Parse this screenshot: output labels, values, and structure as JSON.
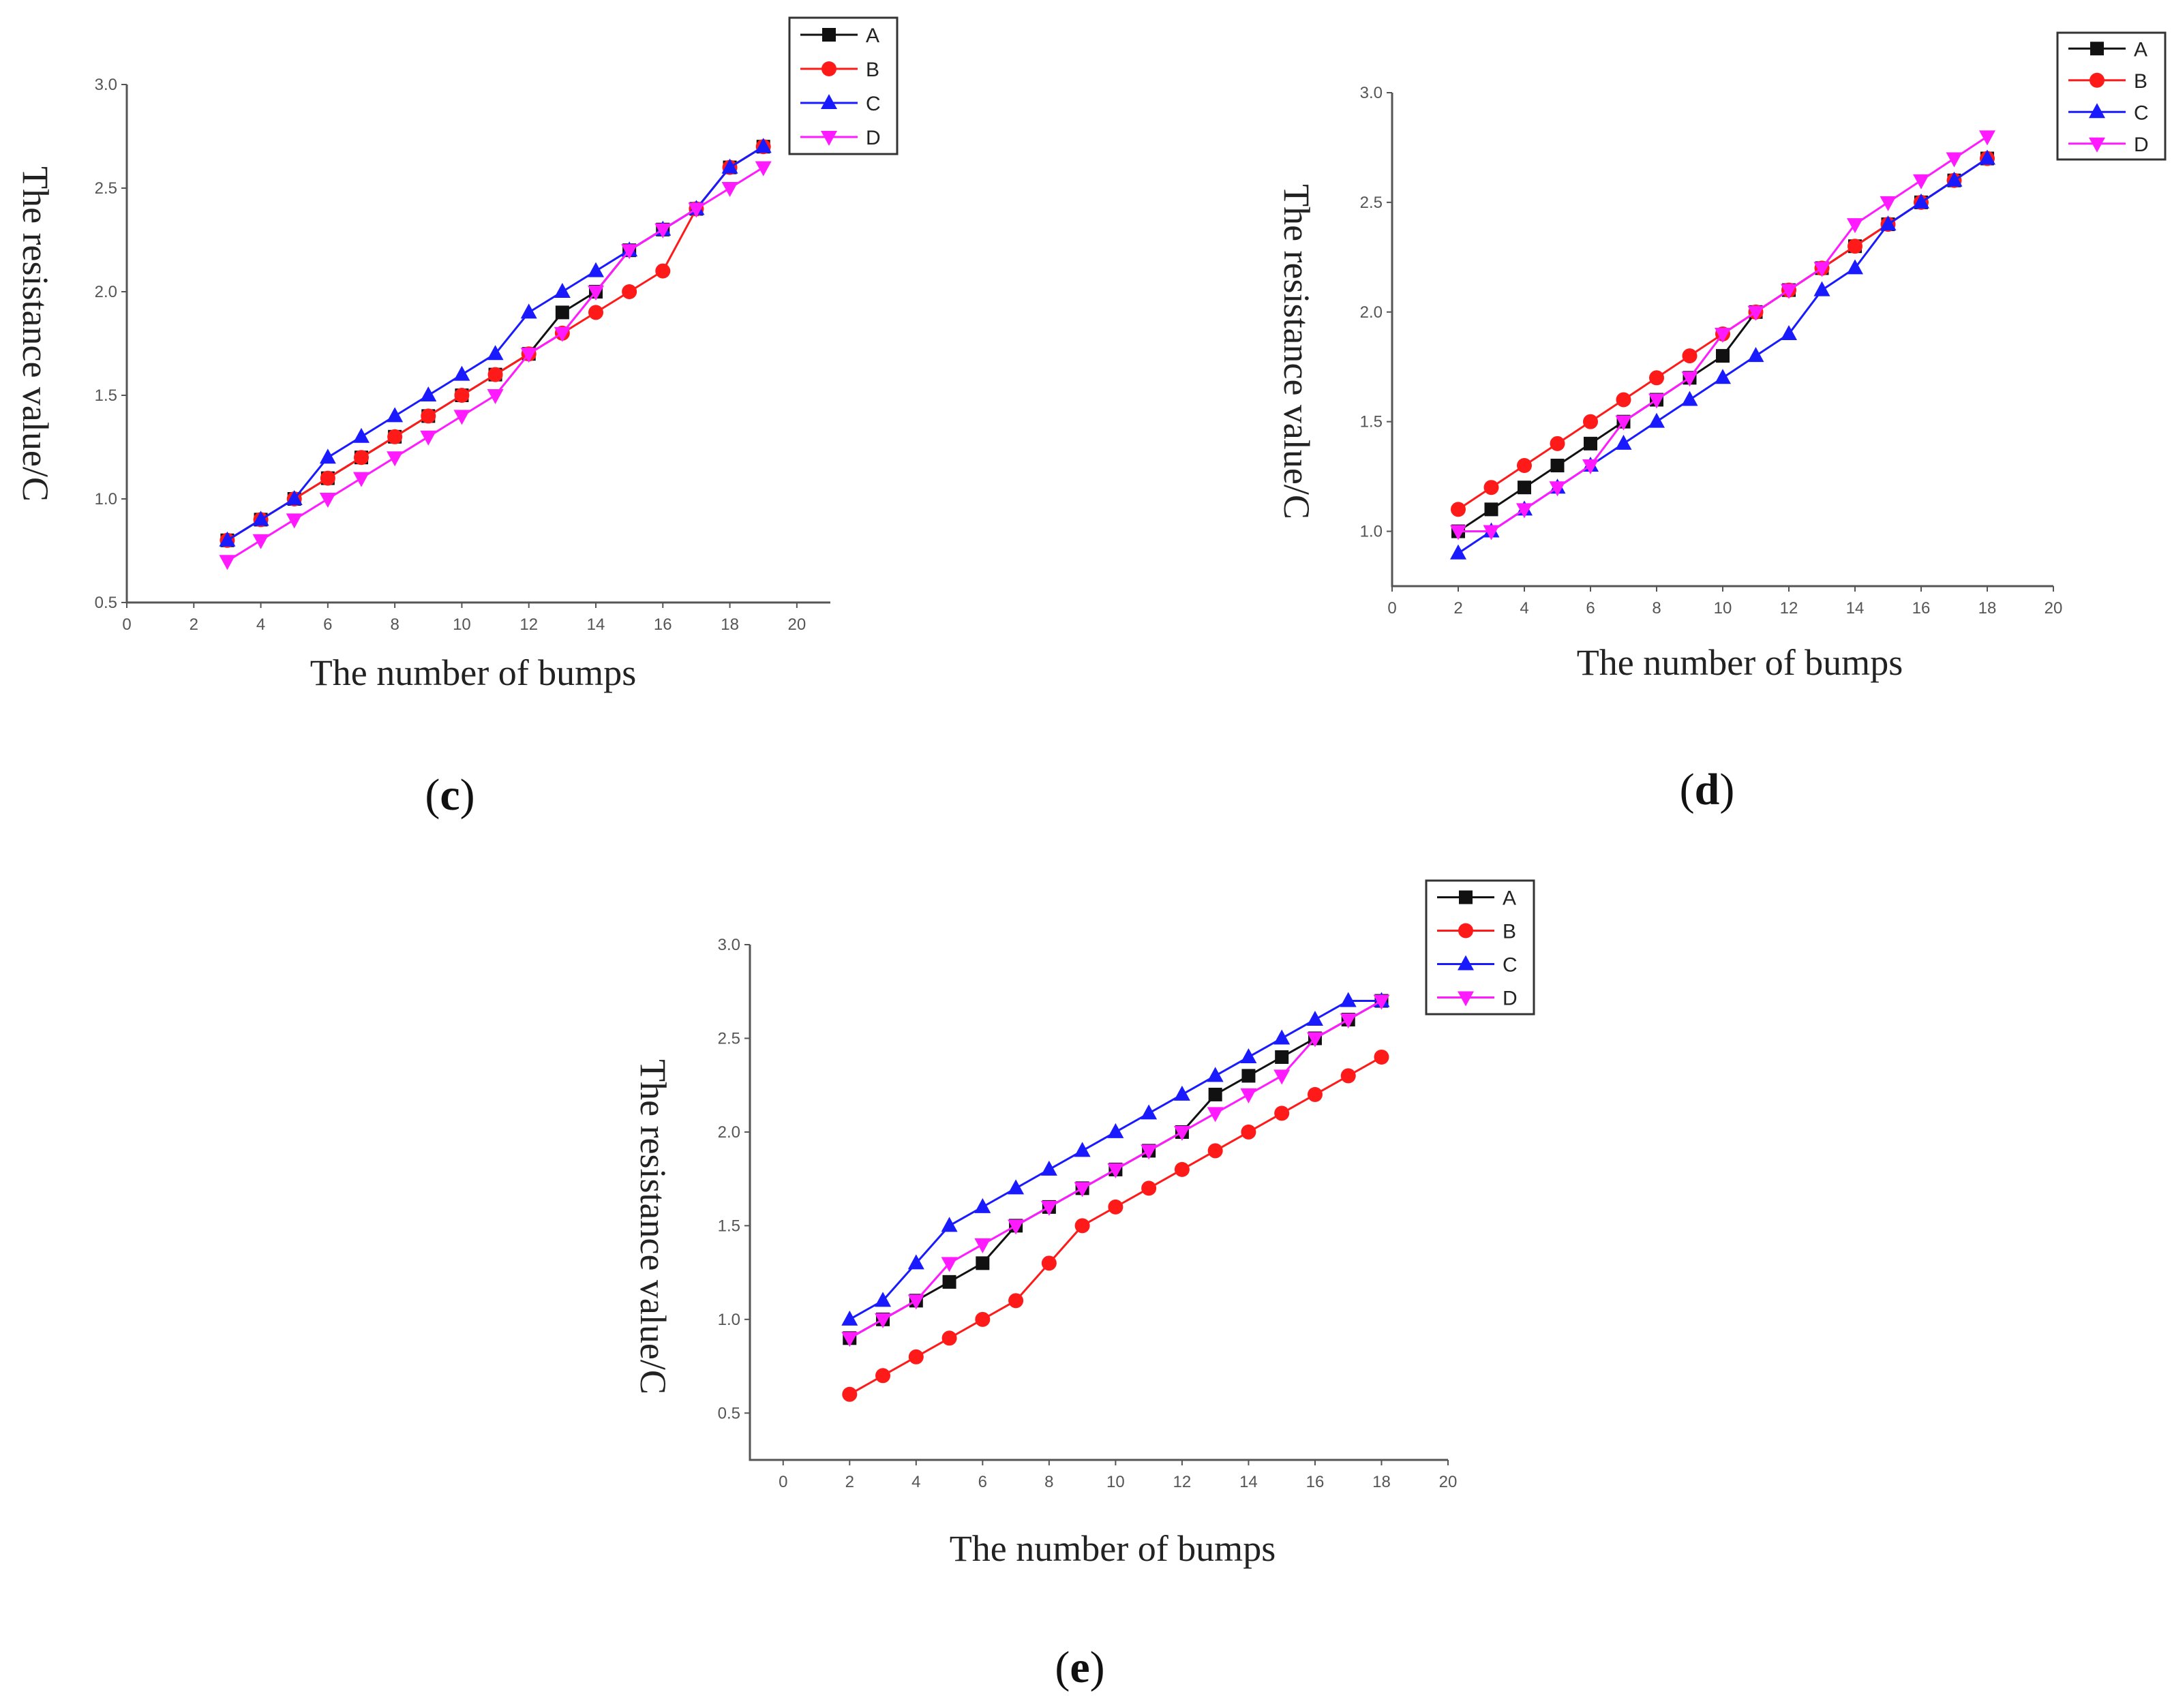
{
  "colors": {
    "A": "#111111",
    "B": "#ff1a1a",
    "C": "#1a1aff",
    "D": "#ff1aff"
  },
  "chart_data": [
    {
      "type": "line",
      "panel_label": "c",
      "title": "",
      "xlabel": "The number of bumps",
      "ylabel": "The resistance value/C",
      "xlim": [
        0,
        21
      ],
      "ylim": [
        0.5,
        3.0
      ],
      "xticks": [
        "0",
        "2",
        "4",
        "6",
        "8",
        "10",
        "12",
        "14",
        "16",
        "18",
        "20"
      ],
      "yticks": [
        "0.5",
        "1.0",
        "1.5",
        "2.0",
        "2.5",
        "3.0"
      ],
      "legend": "top-right",
      "x": [
        3,
        4,
        5,
        6,
        7,
        8,
        9,
        10,
        11,
        12,
        13,
        14,
        15,
        16,
        17,
        18,
        19
      ],
      "series": [
        {
          "name": "A",
          "marker": "square",
          "values": [
            0.8,
            0.9,
            1.0,
            1.1,
            1.2,
            1.3,
            1.4,
            1.5,
            1.6,
            1.7,
            1.9,
            2.0,
            2.2,
            2.3,
            2.4,
            2.6,
            2.7
          ]
        },
        {
          "name": "B",
          "marker": "circle",
          "values": [
            0.8,
            0.9,
            1.0,
            1.1,
            1.2,
            1.3,
            1.4,
            1.5,
            1.6,
            1.7,
            1.8,
            1.9,
            2.0,
            2.1,
            2.4,
            2.6,
            2.7
          ]
        },
        {
          "name": "C",
          "marker": "triangle-up",
          "values": [
            0.8,
            0.9,
            1.0,
            1.2,
            1.3,
            1.4,
            1.5,
            1.6,
            1.7,
            1.9,
            2.0,
            2.1,
            2.2,
            2.3,
            2.4,
            2.6,
            2.7
          ]
        },
        {
          "name": "D",
          "marker": "triangle-down",
          "values": [
            0.7,
            0.8,
            0.9,
            1.0,
            1.1,
            1.2,
            1.3,
            1.4,
            1.5,
            1.7,
            1.8,
            2.0,
            2.2,
            2.3,
            2.4,
            2.5,
            2.6
          ]
        }
      ]
    },
    {
      "type": "line",
      "panel_label": "d",
      "title": "",
      "xlabel": "The number of bumps",
      "ylabel": "The resistance value/C",
      "xlim": [
        0,
        20
      ],
      "ylim": [
        0.75,
        3.0
      ],
      "xticks": [
        "0",
        "2",
        "4",
        "6",
        "8",
        "10",
        "12",
        "14",
        "16",
        "18",
        "20"
      ],
      "yticks": [
        "1.0",
        "1.5",
        "2.0",
        "2.5",
        "3.0"
      ],
      "legend": "top-right",
      "x": [
        2,
        3,
        4,
        5,
        6,
        7,
        8,
        9,
        10,
        11,
        12,
        13,
        14,
        15,
        16,
        17,
        18
      ],
      "series": [
        {
          "name": "A",
          "marker": "square",
          "values": [
            1.0,
            1.1,
            1.2,
            1.3,
            1.4,
            1.5,
            1.6,
            1.7,
            1.8,
            2.0,
            2.1,
            2.2,
            2.3,
            2.4,
            2.5,
            2.6,
            2.7
          ]
        },
        {
          "name": "B",
          "marker": "circle",
          "values": [
            1.1,
            1.2,
            1.3,
            1.4,
            1.5,
            1.6,
            1.7,
            1.8,
            1.9,
            2.0,
            2.1,
            2.2,
            2.3,
            2.4,
            2.5,
            2.6,
            2.7
          ]
        },
        {
          "name": "C",
          "marker": "triangle-up",
          "values": [
            0.9,
            1.0,
            1.1,
            1.2,
            1.3,
            1.4,
            1.5,
            1.6,
            1.7,
            1.8,
            1.9,
            2.1,
            2.2,
            2.4,
            2.5,
            2.6,
            2.7
          ]
        },
        {
          "name": "D",
          "marker": "triangle-down",
          "values": [
            1.0,
            1.0,
            1.1,
            1.2,
            1.3,
            1.5,
            1.6,
            1.7,
            1.9,
            2.0,
            2.1,
            2.2,
            2.4,
            2.5,
            2.6,
            2.7,
            2.8
          ]
        }
      ]
    },
    {
      "type": "line",
      "panel_label": "e",
      "title": "",
      "xlabel": "The number of bumps",
      "ylabel": "The resistance value/C",
      "xlim": [
        -1,
        20
      ],
      "ylim": [
        0.25,
        3.0
      ],
      "xticks": [
        "0",
        "2",
        "4",
        "6",
        "8",
        "10",
        "12",
        "14",
        "16",
        "18",
        "20"
      ],
      "yticks": [
        "0.5",
        "1.0",
        "1.5",
        "2.0",
        "2.5",
        "3.0"
      ],
      "legend": "top-right",
      "x": [
        2,
        3,
        4,
        5,
        6,
        7,
        8,
        9,
        10,
        11,
        12,
        13,
        14,
        15,
        16,
        17,
        18
      ],
      "series": [
        {
          "name": "A",
          "marker": "square",
          "values": [
            0.9,
            1.0,
            1.1,
            1.2,
            1.3,
            1.5,
            1.6,
            1.7,
            1.8,
            1.9,
            2.0,
            2.2,
            2.3,
            2.4,
            2.5,
            2.6,
            2.7
          ]
        },
        {
          "name": "B",
          "marker": "circle",
          "values": [
            0.6,
            0.7,
            0.8,
            0.9,
            1.0,
            1.1,
            1.3,
            1.5,
            1.6,
            1.7,
            1.8,
            1.9,
            2.0,
            2.1,
            2.2,
            2.3,
            2.4
          ]
        },
        {
          "name": "C",
          "marker": "triangle-up",
          "values": [
            1.0,
            1.1,
            1.3,
            1.5,
            1.6,
            1.7,
            1.8,
            1.9,
            2.0,
            2.1,
            2.2,
            2.3,
            2.4,
            2.5,
            2.6,
            2.7,
            2.7
          ]
        },
        {
          "name": "D",
          "marker": "triangle-down",
          "values": [
            0.9,
            1.0,
            1.1,
            1.3,
            1.4,
            1.5,
            1.6,
            1.7,
            1.8,
            1.9,
            2.0,
            2.1,
            2.2,
            2.3,
            2.5,
            2.6,
            2.7
          ]
        }
      ]
    }
  ]
}
